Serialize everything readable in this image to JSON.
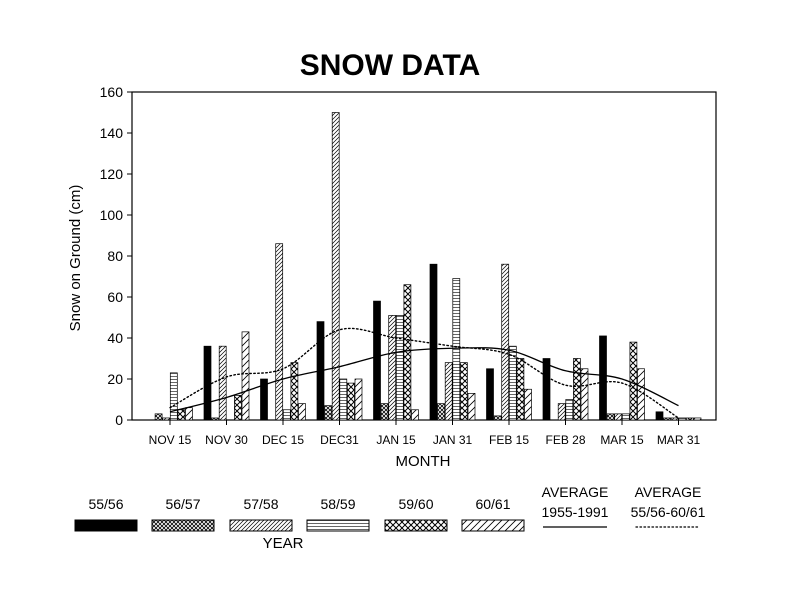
{
  "chart_data": {
    "type": "bar",
    "title": "SNOW DATA",
    "xlabel": "MONTH",
    "ylabel": "Snow on Ground (cm)",
    "legend_title": "YEAR",
    "ylim": [
      0,
      160
    ],
    "yticks": [
      0,
      20,
      40,
      60,
      80,
      100,
      120,
      140,
      160
    ],
    "grid": false,
    "legend_position": "bottom",
    "categories": [
      "NOV 15",
      "NOV 30",
      "DEC 15",
      "DEC31",
      "JAN 15",
      "JAN 31",
      "FEB 15",
      "FEB 28",
      "MAR 15",
      "MAR 31"
    ],
    "series": [
      {
        "name": "55/56",
        "pattern": "solid",
        "values": [
          0,
          36,
          20,
          48,
          58,
          76,
          25,
          30,
          41,
          4
        ]
      },
      {
        "name": "56/57",
        "pattern": "crosshatch",
        "values": [
          3,
          1,
          0,
          7,
          8,
          8,
          2,
          0,
          3,
          1
        ]
      },
      {
        "name": "57/58",
        "pattern": "diagonal",
        "values": [
          1,
          36,
          86,
          150,
          51,
          28,
          76,
          8,
          3,
          1
        ]
      },
      {
        "name": "58/59",
        "pattern": "hlines",
        "values": [
          23,
          0,
          5,
          20,
          51,
          69,
          36,
          10,
          3,
          1
        ]
      },
      {
        "name": "59/60",
        "pattern": "checker",
        "values": [
          5,
          12,
          28,
          18,
          66,
          28,
          30,
          30,
          38,
          1
        ]
      },
      {
        "name": "60/61",
        "pattern": "wide-diagonal",
        "values": [
          6,
          43,
          8,
          20,
          5,
          13,
          15,
          25,
          25,
          1
        ]
      }
    ],
    "lines": [
      {
        "name": "AVERAGE\n1955-1991",
        "label_line1": "AVERAGE",
        "label_line2": "1955-1991",
        "style": "solid",
        "values": [
          4,
          11,
          20,
          26,
          33,
          35,
          34,
          24,
          20,
          7
        ]
      },
      {
        "name": "AVERAGE\n55/56-60/61",
        "label_line1": "AVERAGE",
        "label_line2": "55/56-60/61",
        "style": "dotted",
        "values": [
          6,
          21,
          25,
          44,
          40,
          36,
          32,
          17,
          18,
          1
        ]
      }
    ]
  }
}
